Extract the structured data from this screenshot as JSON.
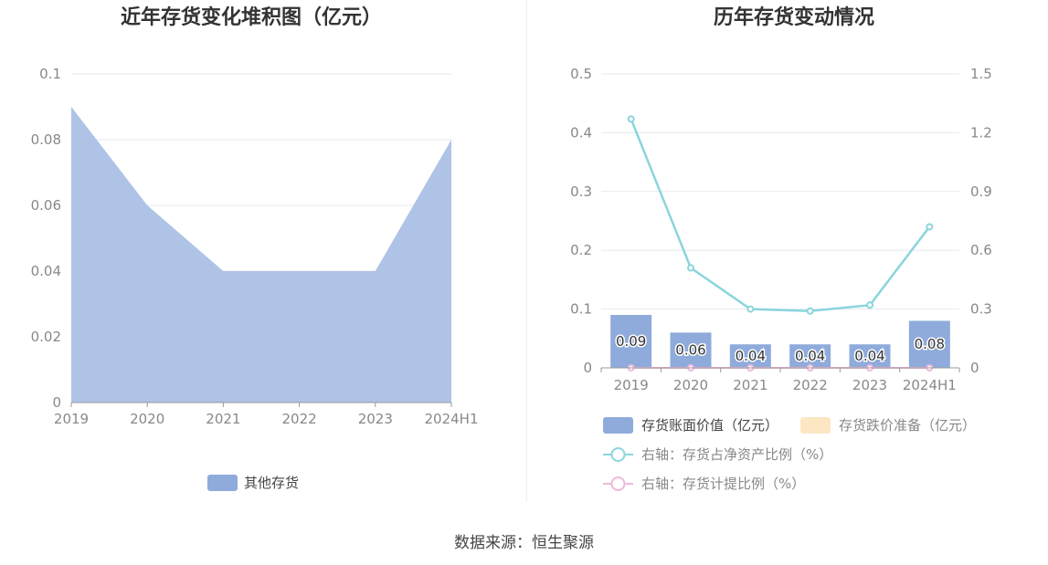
{
  "source_label": "数据来源：恒生聚源",
  "chart_data": [
    {
      "type": "area",
      "title": "近年存货变化堆积图（亿元）",
      "categories": [
        "2019",
        "2020",
        "2021",
        "2022",
        "2023",
        "2024H1"
      ],
      "y_ticks": [
        "0",
        "0.02",
        "0.04",
        "0.06",
        "0.08",
        "0.1"
      ],
      "ylim": [
        0,
        0.1
      ],
      "grid": true,
      "legend_position": "bottom",
      "series": [
        {
          "name": "其他存货",
          "values": [
            0.09,
            0.06,
            0.04,
            0.04,
            0.04,
            0.08
          ],
          "color": "#aec3e6",
          "legend_color": "#8fabdc"
        }
      ]
    },
    {
      "type": "bar+line",
      "title": "历年存货变动情况",
      "categories": [
        "2019",
        "2020",
        "2021",
        "2022",
        "2023",
        "2024H1"
      ],
      "y_left_ticks": [
        "0",
        "0.1",
        "0.2",
        "0.3",
        "0.4",
        "0.5"
      ],
      "y_left_lim": [
        0,
        0.5
      ],
      "y_right_ticks": [
        "0",
        "0.3",
        "0.6",
        "0.9",
        "1.2",
        "1.5"
      ],
      "y_right_lim": [
        0,
        1.5
      ],
      "grid": true,
      "legend_position": "bottom",
      "bar_series": [
        {
          "name": "存货账面价值（亿元）",
          "values": [
            0.09,
            0.06,
            0.04,
            0.04,
            0.04,
            0.08
          ],
          "labels": [
            "0.09",
            "0.06",
            "0.04",
            "0.04",
            "0.04",
            "0.08"
          ],
          "color": "#8fabdc"
        },
        {
          "name": "存货跌价准备（亿元）",
          "values": [
            0,
            0,
            0,
            0,
            0,
            0
          ],
          "color": "#fde6c4"
        }
      ],
      "line_series": [
        {
          "name": "右轴：存货占净资产比例（%）",
          "values": [
            1.27,
            0.51,
            0.3,
            0.29,
            0.32,
            0.72
          ],
          "color": "#8ad5dc"
        },
        {
          "name": "右轴：存货计提比例（%）",
          "values": [
            0,
            0,
            0,
            0,
            0,
            0
          ],
          "color": "#f0b8dc"
        }
      ]
    }
  ]
}
